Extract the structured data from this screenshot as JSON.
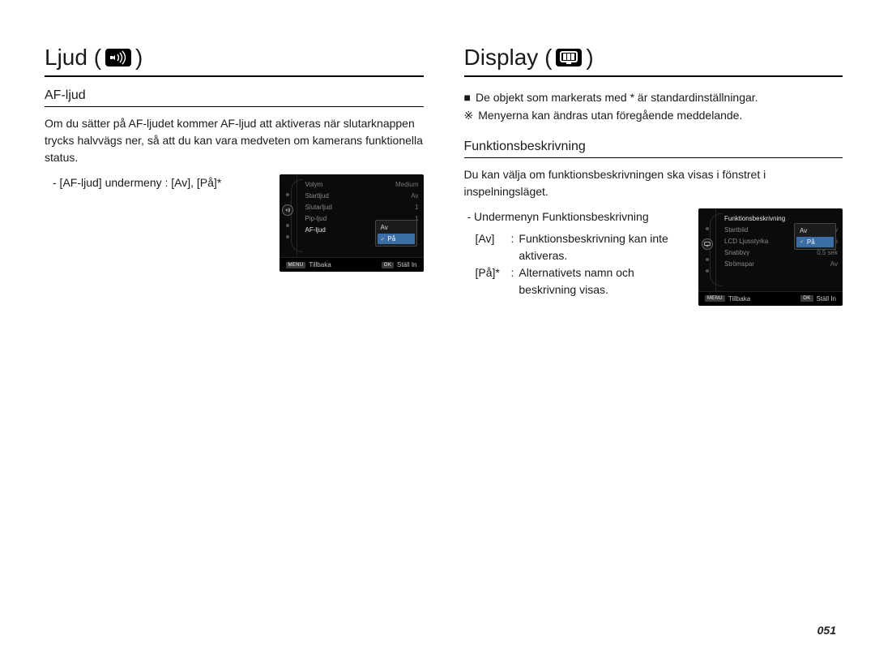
{
  "page_number": "051",
  "colors": {
    "text": "#1a1a1a",
    "rule": "#000000",
    "cam_bg": "#0b0b0b",
    "cam_text_dim": "#8a8a8a",
    "cam_text_sel": "#e8e8e8",
    "cam_highlight": "#3a6ea5",
    "cam_foot_bg": "#000000",
    "cam_badge": "#3a3a3a"
  },
  "left": {
    "title_prefix": "Ljud (",
    "title_suffix": ")",
    "sub_heading": "AF-ljud",
    "paragraph": "Om du sätter på AF-ljudet kommer AF-ljud att aktiveras när slutarknappen trycks halvvägs ner, så att du kan vara medveten om kamerans funktionella status.",
    "submenu_line": "- [AF-ljud] undermeny : [Av], [På]*",
    "cam": {
      "rail_active_icon": "sound-icon",
      "rows": [
        {
          "label": "Volym",
          "value": "Medium"
        },
        {
          "label": "Startljud",
          "value": "Av"
        },
        {
          "label": "Slutarljud",
          "value": "1"
        },
        {
          "label": "Pip-ljud",
          "value": "1"
        },
        {
          "label": "AF-ljud",
          "value": "",
          "selected": true
        }
      ],
      "popup": {
        "options": [
          {
            "label": "Av",
            "highlight": false
          },
          {
            "label": "På",
            "highlight": true,
            "checked": true
          }
        ]
      },
      "footer": {
        "back_key": "MENU",
        "back": "Tillbaka",
        "ok_key": "OK",
        "ok": "Ställ In"
      }
    }
  },
  "right": {
    "title_prefix": "Display (",
    "title_suffix": ")",
    "notes": [
      {
        "bullet": "■",
        "text": "De objekt som markerats med * är standardinställningar."
      },
      {
        "bullet": "※",
        "text": "Menyerna kan ändras utan föregående meddelande."
      }
    ],
    "sub_heading": "Funktionsbeskrivning",
    "paragraph": "Du kan välja om funktionsbeskrivningen ska visas i fönstret i inspelningsläget.",
    "submenu_line": "- Undermenyn Funktionsbeskrivning",
    "defs": [
      {
        "key": "[Av]",
        "sep": ":",
        "val": "Funktionsbeskrivning kan inte aktiveras."
      },
      {
        "key": "[På]*",
        "sep": ":",
        "val": "Alternativets namn och beskrivning visas."
      }
    ],
    "cam": {
      "rail_active_icon": "display-icon",
      "rows": [
        {
          "label": "Funktionsbeskrivning",
          "value": "",
          "selected": true
        },
        {
          "label": "Startbild",
          "value": "Av"
        },
        {
          "label": "LCD Ljusstyrka",
          "value": "Auto"
        },
        {
          "label": "Snabbvy",
          "value": "0,5 sek"
        },
        {
          "label": "Strömspar",
          "value": "Av"
        }
      ],
      "popup": {
        "options": [
          {
            "label": "Av",
            "highlight": false
          },
          {
            "label": "På",
            "highlight": true,
            "checked": true
          }
        ]
      },
      "footer": {
        "back_key": "MENU",
        "back": "Tillbaka",
        "ok_key": "OK",
        "ok": "Ställ In"
      }
    }
  }
}
